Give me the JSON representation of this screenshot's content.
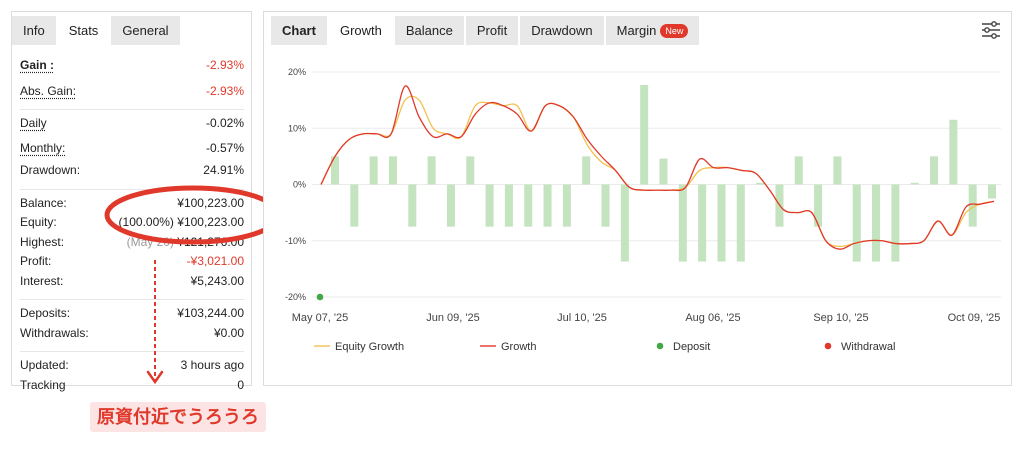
{
  "left_tabs": [
    {
      "label": "Info",
      "active": false
    },
    {
      "label": "Stats",
      "active": true
    },
    {
      "label": "General",
      "active": false
    }
  ],
  "stats": {
    "gain": {
      "label": "Gain :",
      "value": "-2.93%"
    },
    "abs_gain": {
      "label": "Abs. Gain:",
      "value": "-2.93%"
    },
    "daily": {
      "label": "Daily",
      "value": "-0.02%"
    },
    "monthly": {
      "label": "Monthly:",
      "value": "-0.57%"
    },
    "drawdown": {
      "label": "Drawdown:",
      "value": "24.91%"
    },
    "balance": {
      "label": "Balance:",
      "value": "¥100,223.00"
    },
    "equity": {
      "label": "Equity:",
      "percent": "(100.00%)",
      "value": "¥100,223.00"
    },
    "highest": {
      "label": "Highest:",
      "date": "(May 20)",
      "value": "¥121,276.00"
    },
    "profit": {
      "label": "Profit:",
      "value": "-¥3,021.00"
    },
    "interest": {
      "label": "Interest:",
      "value": "¥5,243.00"
    },
    "deposits": {
      "label": "Deposits:",
      "value": "¥103,244.00"
    },
    "withdrawals": {
      "label": "Withdrawals:",
      "value": "¥0.00"
    },
    "updated": {
      "label": "Updated:",
      "value": "3 hours ago"
    },
    "tracking": {
      "label": "Tracking",
      "value": "0"
    }
  },
  "annotation": {
    "text": "原資付近でうろうろ",
    "color": "#e0392b"
  },
  "chart_tabs": [
    {
      "label": "Chart",
      "active": false,
      "bold": true
    },
    {
      "label": "Growth",
      "active": true
    },
    {
      "label": "Balance",
      "active": false
    },
    {
      "label": "Profit",
      "active": false
    },
    {
      "label": "Drawdown",
      "active": false
    },
    {
      "label": "Margin",
      "active": false,
      "badge": "New"
    }
  ],
  "icons": {
    "settings": "sliders-icon"
  },
  "colors": {
    "bars": "#c4e3bf",
    "growth": "#e0392b",
    "equity": "#f2c14e",
    "deposit": "#43a843",
    "withdrawal": "#e0392b"
  },
  "chart_data": {
    "type": "bar+line",
    "y_ticks": [
      "20%",
      "10%",
      "0%",
      "-10%",
      "-20%"
    ],
    "ylim": [
      -20,
      20
    ],
    "x_labels": [
      "May 07, '25",
      "Jun 09, '25",
      "Jul 10, '25",
      "Aug 06, '25",
      "Sep 10, '25",
      "Oct 09, '25"
    ],
    "bars": [
      5,
      -7.5,
      5,
      5,
      -7.5,
      5,
      -7.5,
      5,
      -7.5,
      -7.5,
      -7.5,
      -7.5,
      -7.5,
      5,
      -7.5,
      -13.7,
      17.7,
      4.6,
      -13.7,
      -13.7,
      -13.7,
      -13.7,
      0.3,
      -7.5,
      5,
      -7.5,
      5,
      -13.7,
      -13.7,
      -13.7,
      0.3,
      5,
      11.5,
      -7.5,
      -2.5
    ],
    "series": [
      {
        "name": "Equity Growth",
        "values": [
          0,
          5,
          8,
          9,
          9,
          9,
          15,
          15,
          10,
          9,
          8.5,
          14,
          14.5,
          14,
          14,
          9.5,
          14,
          14,
          12,
          7,
          4,
          2.5,
          -0.5,
          -1,
          -1,
          -1,
          -0.5,
          2.5,
          3,
          3,
          2.5,
          2,
          -1,
          -4.5,
          -5,
          -5,
          -10,
          -11,
          -10.5,
          -10,
          -10,
          -10.5,
          -10.5,
          -10,
          -6.5,
          -9,
          -5,
          -3.5,
          -3
        ]
      },
      {
        "name": "Growth",
        "values": [
          0,
          5,
          8,
          9,
          9,
          9,
          17.5,
          12,
          8.5,
          9,
          8.5,
          12.5,
          14.5,
          14,
          12.5,
          9.5,
          14,
          14,
          12,
          8,
          5,
          2.5,
          -0.5,
          -1,
          -1,
          -1,
          -0.5,
          4.5,
          3,
          3,
          2.5,
          2,
          -1,
          -4.5,
          -5,
          -5,
          -10,
          -11.5,
          -10.5,
          -10,
          -10,
          -10.5,
          -10.5,
          -10,
          -6.5,
          -9,
          -4,
          -3.5,
          -3
        ]
      }
    ],
    "deposit_markers": [
      {
        "x_index": 0,
        "value": -20
      }
    ],
    "legend": [
      {
        "label": "Equity Growth",
        "kind": "line",
        "color": "#f2c14e"
      },
      {
        "label": "Growth",
        "kind": "line",
        "color": "#e0392b"
      },
      {
        "label": "Deposit",
        "kind": "dot",
        "color": "#43a843"
      },
      {
        "label": "Withdrawal",
        "kind": "dot",
        "color": "#e0392b"
      }
    ],
    "legend_position": "bottom"
  }
}
